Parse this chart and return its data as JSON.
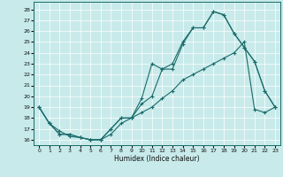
{
  "xlabel": "Humidex (Indice chaleur)",
  "bg_color": "#c8eaea",
  "line_color": "#1a6b6b",
  "grid_color": "#ffffff",
  "xlim": [
    -0.5,
    23.5
  ],
  "ylim": [
    15.5,
    28.7
  ],
  "yticks": [
    16,
    17,
    18,
    19,
    20,
    21,
    22,
    23,
    24,
    25,
    26,
    27,
    28
  ],
  "xticks": [
    0,
    1,
    2,
    3,
    4,
    5,
    6,
    7,
    8,
    9,
    10,
    11,
    12,
    13,
    14,
    15,
    16,
    17,
    18,
    19,
    20,
    21,
    22,
    23
  ],
  "line1_x": [
    0,
    1,
    2,
    3,
    4,
    5,
    6,
    7,
    8,
    9,
    10,
    11,
    12,
    13,
    14,
    15,
    16,
    17,
    18,
    19,
    20,
    21,
    22,
    23
  ],
  "line1_y": [
    19.0,
    17.5,
    16.5,
    16.5,
    16.2,
    16.0,
    16.0,
    17.0,
    18.0,
    18.0,
    19.8,
    23.0,
    22.5,
    22.5,
    24.8,
    26.3,
    26.3,
    27.8,
    27.5,
    25.8,
    24.5,
    23.2,
    20.5,
    19.0
  ],
  "line2_x": [
    0,
    1,
    2,
    3,
    4,
    5,
    6,
    7,
    8,
    9,
    10,
    11,
    12,
    13,
    14,
    15,
    16,
    17,
    18,
    19,
    20,
    21,
    22,
    23
  ],
  "line2_y": [
    19.0,
    17.5,
    16.5,
    16.5,
    16.2,
    16.0,
    16.0,
    17.0,
    18.0,
    18.0,
    19.3,
    20.0,
    22.5,
    23.0,
    25.0,
    26.3,
    26.3,
    27.8,
    27.5,
    25.8,
    24.5,
    23.2,
    20.5,
    19.0
  ],
  "line3_x": [
    0,
    1,
    2,
    3,
    4,
    5,
    6,
    7,
    8,
    9,
    10,
    11,
    12,
    13,
    14,
    15,
    16,
    17,
    18,
    19,
    20,
    21,
    22,
    23
  ],
  "line3_y": [
    19.0,
    17.5,
    16.8,
    16.3,
    16.2,
    16.0,
    16.0,
    16.5,
    17.5,
    18.0,
    18.5,
    19.0,
    19.8,
    20.5,
    21.5,
    22.0,
    22.5,
    23.0,
    23.5,
    24.0,
    25.0,
    18.8,
    18.5,
    19.0
  ]
}
